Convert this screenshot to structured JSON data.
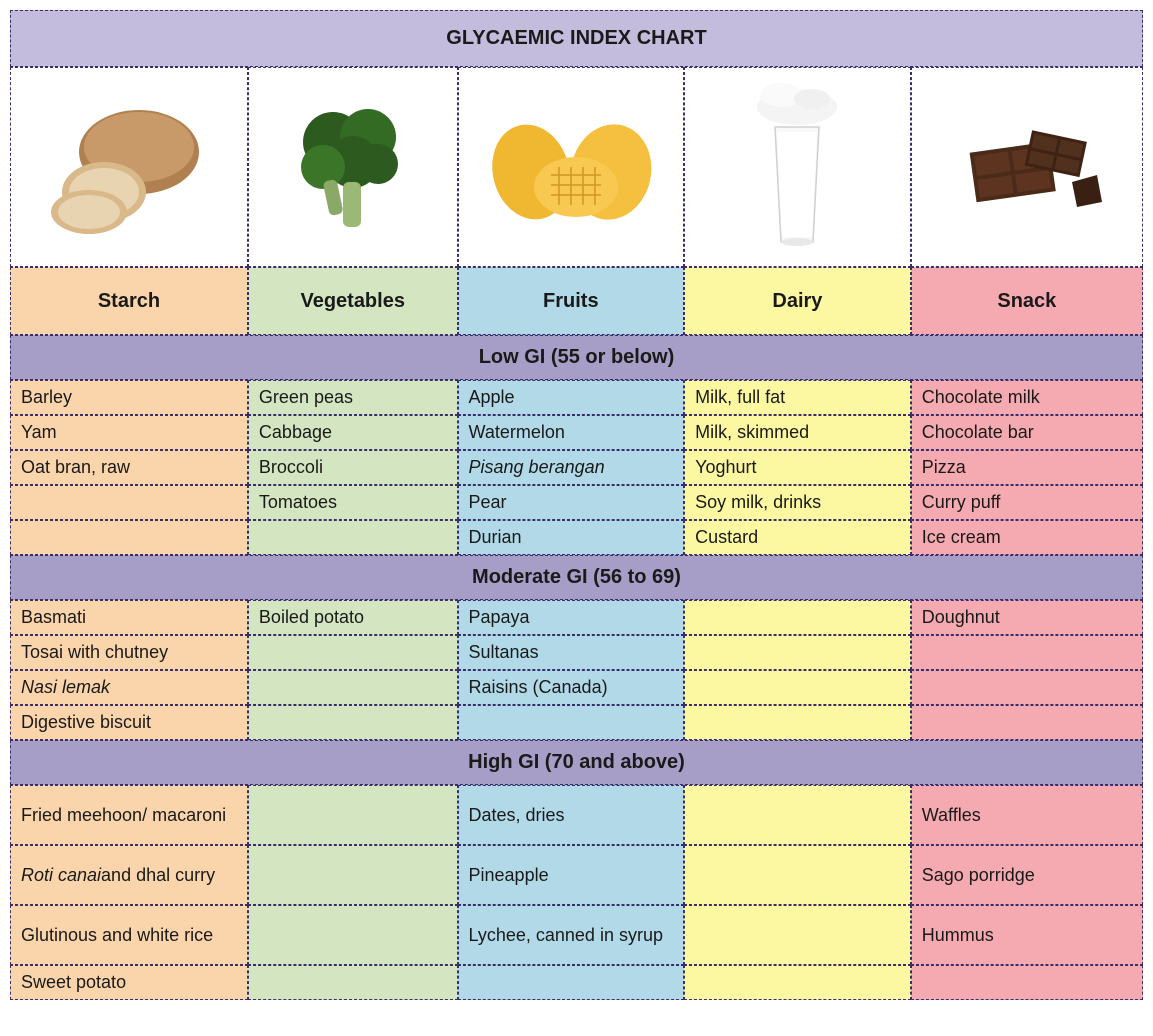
{
  "title": "GLYCAEMIC INDEX CHART",
  "colors": {
    "title_bg": "#c4bcdc",
    "section_bg": "#a79ec7",
    "border": "#3a2d6b",
    "starch": "#fad4ab",
    "vegetables": "#d4e5c1",
    "fruits": "#b1d9e8",
    "dairy": "#fcf8a2",
    "snack": "#f4aab0",
    "white": "#ffffff"
  },
  "categories": [
    {
      "key": "starch",
      "label": "Starch",
      "icon": "bread"
    },
    {
      "key": "vegetables",
      "label": "Vegetables",
      "icon": "broccoli"
    },
    {
      "key": "fruits",
      "label": "Fruits",
      "icon": "mango"
    },
    {
      "key": "dairy",
      "label": "Dairy",
      "icon": "milk"
    },
    {
      "key": "snack",
      "label": "Snack",
      "icon": "chocolate"
    }
  ],
  "sections": [
    {
      "title": "Low GI (55 or below)",
      "rows": [
        {
          "starch": "Barley",
          "vegetables": "Green peas",
          "fruits": "Apple",
          "dairy": "Milk, full fat",
          "snack": "Chocolate milk"
        },
        {
          "starch": "Yam",
          "vegetables": "Cabbage",
          "fruits": "Watermelon",
          "dairy": "Milk, skimmed",
          "snack": "Chocolate bar"
        },
        {
          "starch": "Oat bran, raw",
          "vegetables": "Broccoli",
          "fruits": "Pisang berangan",
          "fruits_italic": true,
          "dairy": "Yoghurt",
          "snack": "Pizza"
        },
        {
          "starch": "",
          "vegetables": "Tomatoes",
          "fruits": "Pear",
          "dairy": "Soy milk, drinks",
          "snack": "Curry puff"
        },
        {
          "starch": "",
          "vegetables": "",
          "fruits": "Durian",
          "dairy": "Custard",
          "snack": "Ice cream"
        }
      ]
    },
    {
      "title": "Moderate GI (56 to 69)",
      "rows": [
        {
          "starch": "Basmati",
          "vegetables": "Boiled potato",
          "fruits": "Papaya",
          "dairy": "",
          "snack": "Doughnut"
        },
        {
          "starch": "Tosai with chutney",
          "vegetables": "",
          "fruits": "Sultanas",
          "dairy": "",
          "snack": ""
        },
        {
          "starch": "Nasi lemak",
          "starch_italic": true,
          "vegetables": "",
          "fruits": "Raisins (Canada)",
          "dairy": "",
          "snack": ""
        },
        {
          "starch": "Digestive biscuit",
          "vegetables": "",
          "fruits": "",
          "dairy": "",
          "snack": ""
        }
      ]
    },
    {
      "title": "High GI (70 and above)",
      "rows": [
        {
          "starch": "Fried meehoon/ macaroni",
          "vegetables": "",
          "fruits": "Dates, dries",
          "dairy": "",
          "snack": "Waffles",
          "tall": true
        },
        {
          "starch": "Roti canai and dhal curry",
          "starch_italic_partial": "Roti canai",
          "vegetables": "",
          "fruits": "Pineapple",
          "dairy": "",
          "snack": "Sago porridge",
          "tall": true
        },
        {
          "starch": "Glutinous and white rice",
          "vegetables": "",
          "fruits": "Lychee, canned in syrup",
          "dairy": "",
          "snack": "Hummus",
          "tall": true
        },
        {
          "starch": "Sweet potato",
          "vegetables": "",
          "fruits": "",
          "dairy": "",
          "snack": ""
        }
      ]
    }
  ]
}
